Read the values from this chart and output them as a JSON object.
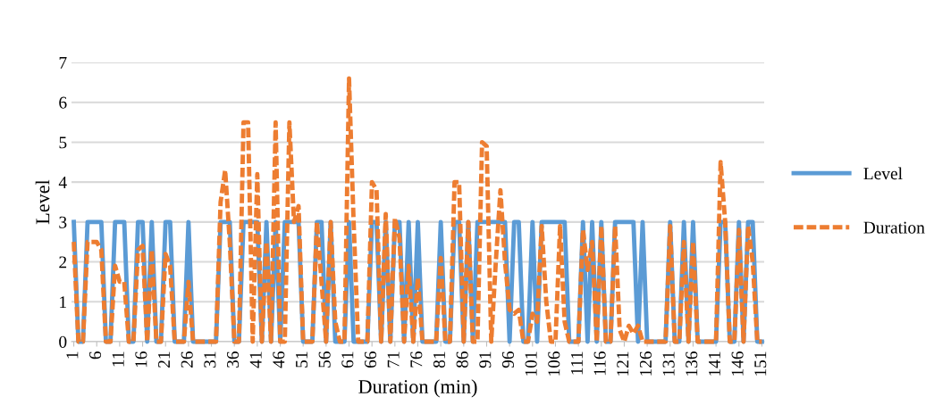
{
  "chart_data": {
    "type": "line",
    "xlabel": "Duration (min)",
    "ylabel": "Level",
    "categories": [
      "1",
      null,
      null,
      null,
      null,
      "6",
      null,
      null,
      null,
      null,
      "11",
      null,
      null,
      null,
      null,
      "16",
      null,
      null,
      null,
      null,
      "21",
      null,
      null,
      null,
      null,
      "26",
      null,
      null,
      null,
      null,
      "31",
      null,
      null,
      null,
      null,
      "36",
      null,
      null,
      null,
      null,
      "41",
      null,
      null,
      null,
      null,
      "46",
      null,
      null,
      null,
      null,
      "51",
      null,
      null,
      null,
      null,
      "56",
      null,
      null,
      null,
      null,
      "61",
      null,
      null,
      null,
      null,
      "66",
      null,
      null,
      null,
      null,
      "71",
      null,
      null,
      null,
      null,
      "76",
      null,
      null,
      null,
      null,
      "81",
      null,
      null,
      null,
      null,
      "86",
      null,
      null,
      null,
      null,
      "91",
      null,
      null,
      null,
      null,
      "96",
      null,
      null,
      null,
      null,
      "101",
      null,
      null,
      null,
      null,
      "106",
      null,
      null,
      null,
      null,
      "111",
      null,
      null,
      null,
      null,
      "116",
      null,
      null,
      null,
      null,
      "121",
      null,
      null,
      null,
      null,
      "126",
      null,
      null,
      null,
      null,
      "131",
      null,
      null,
      null,
      null,
      "136",
      null,
      null,
      null,
      null,
      "141",
      null,
      null,
      null,
      null,
      "146",
      null,
      null,
      null,
      null,
      "151"
    ],
    "series": [
      {
        "name": "Level",
        "color": "#5b9bd5",
        "line_style": "solid",
        "values": [
          3,
          0,
          0,
          3,
          3,
          3,
          3,
          0,
          0,
          3,
          3,
          3,
          0,
          0,
          3,
          3,
          0,
          3,
          0,
          0,
          3,
          3,
          0,
          0,
          0,
          3,
          0,
          0,
          0,
          0,
          0,
          0,
          3,
          3,
          3,
          0,
          0,
          3,
          3,
          3,
          3,
          0,
          3,
          0,
          3,
          0,
          3,
          3,
          3,
          3,
          0,
          0,
          0,
          3,
          3,
          0,
          3,
          0,
          0,
          0,
          3,
          0,
          0,
          0,
          0,
          3,
          3,
          0,
          3,
          0,
          3,
          3,
          0,
          3,
          0,
          3,
          0,
          0,
          0,
          0,
          3,
          0,
          0,
          3,
          3,
          0,
          3,
          0,
          3,
          3,
          3,
          3,
          3,
          3,
          3,
          0,
          3,
          3,
          0,
          0,
          3,
          0,
          3,
          3,
          3,
          3,
          3,
          3,
          0,
          0,
          0,
          3,
          0,
          3,
          0,
          3,
          0,
          0,
          3,
          3,
          3,
          3,
          3,
          0,
          3,
          0,
          0,
          0,
          0,
          0,
          3,
          0,
          0,
          3,
          0,
          3,
          0,
          0,
          0,
          0,
          0,
          3,
          3,
          0,
          0,
          3,
          0,
          3,
          3,
          0,
          0
        ]
      },
      {
        "name": "Duration",
        "color": "#ed7d31",
        "line_style": "dashed",
        "values": [
          2.5,
          0,
          0,
          2.5,
          2.5,
          2.5,
          2.3,
          0,
          0,
          1.9,
          1.5,
          1.5,
          0,
          0,
          2.3,
          2.4,
          0,
          2.3,
          0,
          0,
          2.2,
          1.9,
          0,
          0,
          0,
          1.5,
          0,
          0,
          0,
          0,
          0,
          0,
          3.5,
          4.3,
          2.5,
          0,
          0,
          5.5,
          5.5,
          0,
          4.2,
          0,
          2.5,
          0,
          5.5,
          0,
          0,
          5.5,
          3,
          3.4,
          0,
          0,
          0,
          3,
          1.5,
          0,
          3,
          0.5,
          0,
          0,
          6.6,
          3,
          0,
          0,
          0,
          4,
          3.8,
          0,
          3.2,
          0,
          3.1,
          2.6,
          0,
          1.9,
          0,
          1.6,
          0,
          0,
          0,
          0,
          2.1,
          0,
          0,
          4,
          4,
          0,
          3,
          0,
          0,
          5,
          4.9,
          0,
          2,
          3.8,
          2,
          0.8,
          0.7,
          0.8,
          0,
          0,
          0.7,
          0.5,
          2.9,
          1,
          0,
          0,
          2.9,
          0.5,
          0,
          0,
          0,
          2.8,
          1.8,
          2.5,
          0,
          2.9,
          0,
          0,
          2.9,
          0.3,
          0,
          0.4,
          0.2,
          0.4,
          0,
          0,
          0,
          0,
          0,
          0,
          2.9,
          0,
          0,
          2.5,
          0,
          2.5,
          0,
          0,
          0,
          0,
          0,
          4.5,
          3,
          0,
          0,
          2.8,
          0,
          2.9,
          2,
          0,
          0
        ]
      }
    ],
    "ylim": [
      0,
      7
    ],
    "yticks": [
      0,
      1,
      2,
      3,
      4,
      5,
      6,
      7
    ],
    "grid": "y",
    "legend": "right"
  }
}
